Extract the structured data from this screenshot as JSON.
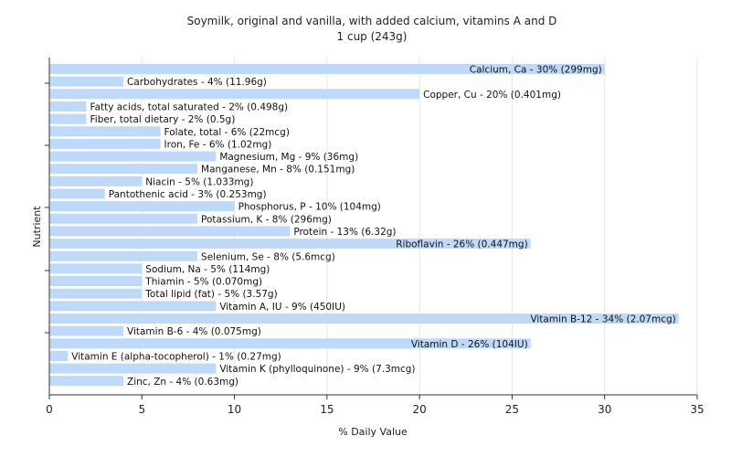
{
  "chart_data": {
    "type": "bar",
    "orientation": "horizontal",
    "title": "Soymilk, original and vanilla, with added calcium, vitamins A and D",
    "subtitle": "1 cup (243g)",
    "xlabel": "% Daily Value",
    "ylabel": "Nutrient",
    "xlim": [
      0,
      35
    ],
    "xticks": [
      0,
      5,
      10,
      15,
      20,
      25,
      30,
      35
    ],
    "grid": true,
    "bar_color": "#bfd9fb",
    "categories": [
      "Calcium, Ca",
      "Carbohydrates",
      "Copper, Cu",
      "Fatty acids, total saturated",
      "Fiber, total dietary",
      "Folate, total",
      "Iron, Fe",
      "Magnesium, Mg",
      "Manganese, Mn",
      "Niacin",
      "Pantothenic acid",
      "Phosphorus, P",
      "Potassium, K",
      "Protein",
      "Riboflavin",
      "Selenium, Se",
      "Sodium, Na",
      "Thiamin",
      "Total lipid (fat)",
      "Vitamin A, IU",
      "Vitamin B-12",
      "Vitamin B-6",
      "Vitamin D",
      "Vitamin E (alpha-tocopherol)",
      "Vitamin K (phylloquinone)",
      "Zinc, Zn"
    ],
    "values": [
      30,
      4,
      20,
      2,
      2,
      6,
      6,
      9,
      8,
      5,
      3,
      10,
      8,
      13,
      26,
      8,
      5,
      5,
      5,
      9,
      34,
      4,
      26,
      1,
      9,
      4
    ],
    "labels": [
      "Calcium, Ca - 30% (299mg)",
      "Carbohydrates - 4% (11.96g)",
      "Copper, Cu - 20% (0.401mg)",
      "Fatty acids, total saturated - 2% (0.498g)",
      "Fiber, total dietary - 2% (0.5g)",
      "Folate, total - 6% (22mcg)",
      "Iron, Fe - 6% (1.02mg)",
      "Magnesium, Mg - 9% (36mg)",
      "Manganese, Mn - 8% (0.151mg)",
      "Niacin - 5% (1.033mg)",
      "Pantothenic acid - 3% (0.253mg)",
      "Phosphorus, P - 10% (104mg)",
      "Potassium, K - 8% (296mg)",
      "Protein - 13% (6.32g)",
      "Riboflavin - 26% (0.447mg)",
      "Selenium, Se - 8% (5.6mcg)",
      "Sodium, Na - 5% (114mg)",
      "Thiamin - 5% (0.070mg)",
      "Total lipid (fat) - 5% (3.57g)",
      "Vitamin A, IU - 9% (450IU)",
      "Vitamin B-12 - 34% (2.07mcg)",
      "Vitamin B-6 - 4% (0.075mg)",
      "Vitamin D - 26% (104IU)",
      "Vitamin E (alpha-tocopherol) - 1% (0.27mg)",
      "Vitamin K (phylloquinone) - 9% (7.3mcg)",
      "Zinc, Zn - 4% (0.63mg)"
    ]
  }
}
